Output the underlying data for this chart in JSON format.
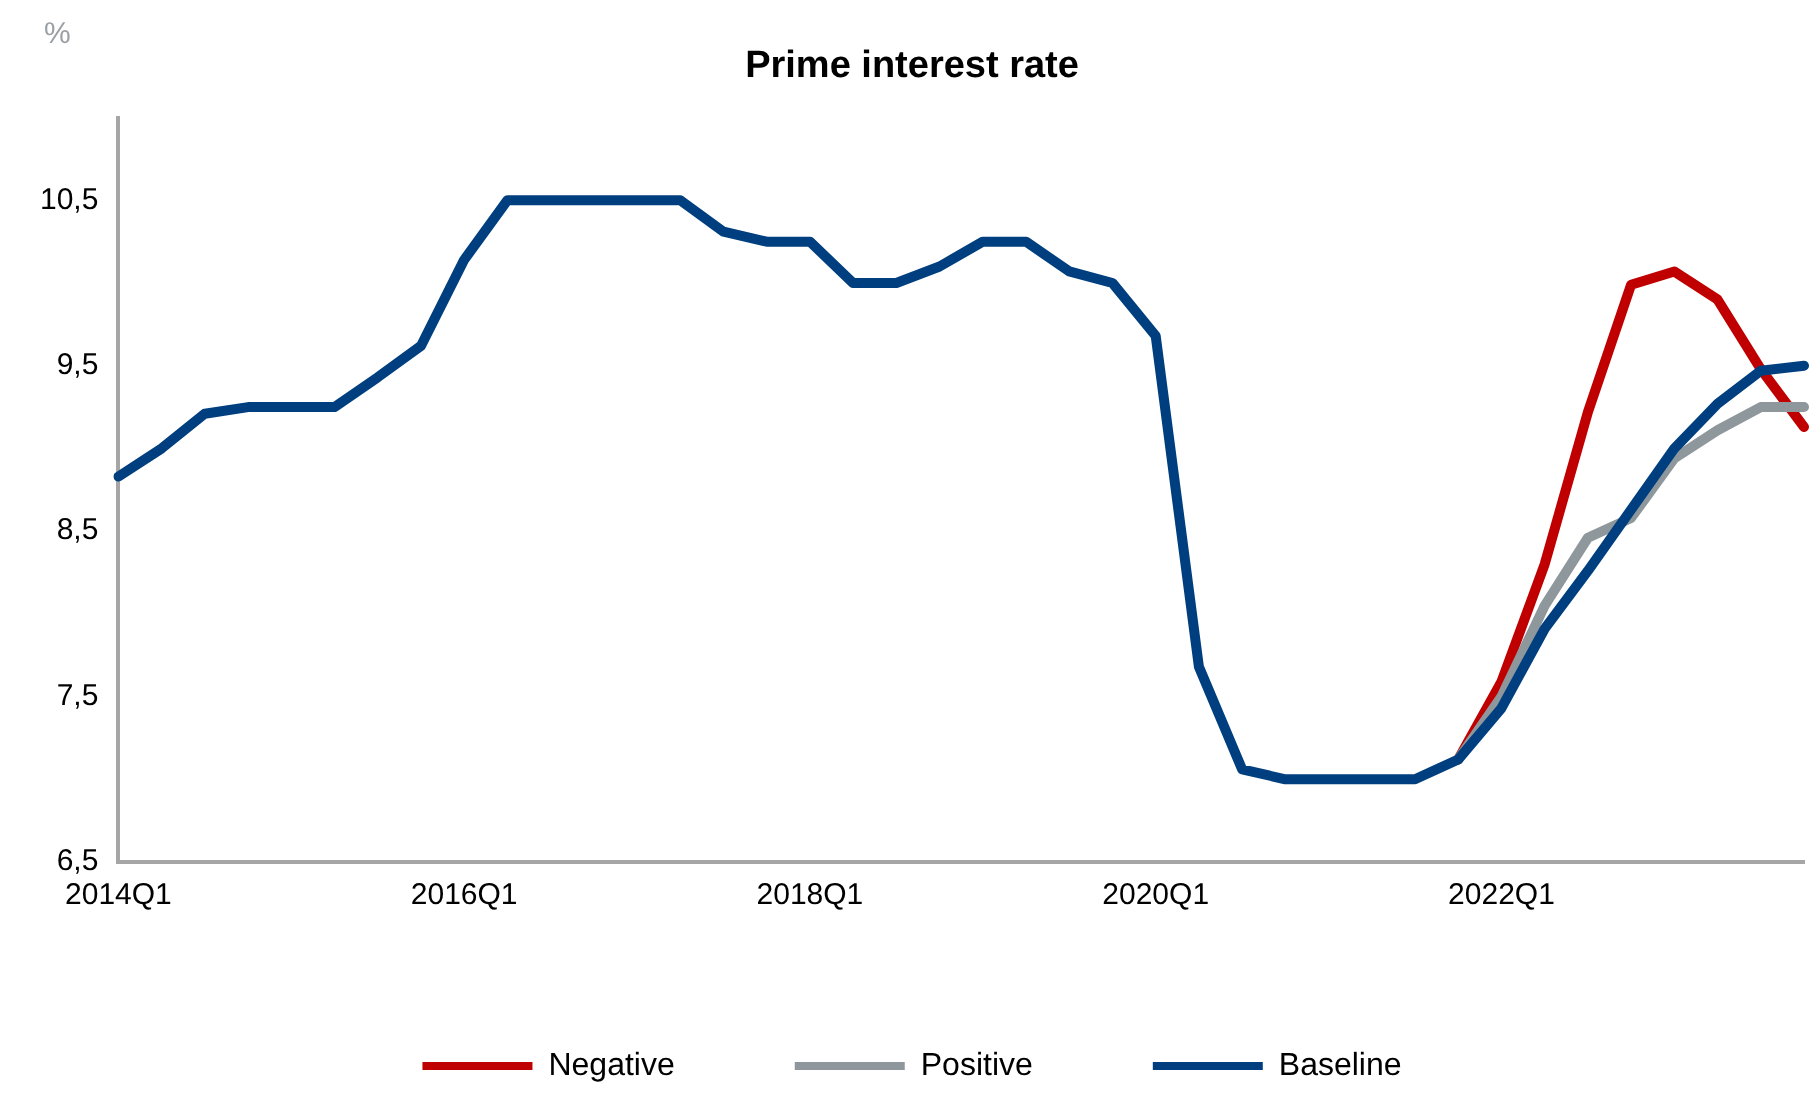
{
  "chart_data": {
    "type": "line",
    "title": "Prime interest rate",
    "ylabel": "%",
    "categories": [
      "2014Q1",
      null,
      null,
      null,
      null,
      null,
      null,
      null,
      "2016Q1",
      null,
      null,
      null,
      null,
      null,
      null,
      null,
      "2018Q1",
      null,
      null,
      null,
      null,
      null,
      null,
      null,
      "2020Q1",
      null,
      null,
      null,
      null,
      null,
      null,
      null,
      "2022Q1",
      null,
      null,
      null,
      null,
      null,
      null,
      null
    ],
    "series": [
      {
        "name": "Negative",
        "color": "#c00000",
        "values": [
          null,
          null,
          null,
          null,
          null,
          null,
          null,
          null,
          null,
          null,
          null,
          null,
          null,
          null,
          null,
          null,
          null,
          null,
          null,
          null,
          null,
          null,
          null,
          null,
          null,
          null,
          null,
          null,
          null,
          null,
          null,
          7.12,
          7.59,
          8.3,
          9.22,
          9.99,
          10.07,
          9.9,
          9.48,
          9.13
        ]
      },
      {
        "name": "Positive",
        "color": "#8e979c",
        "values": [
          null,
          null,
          null,
          null,
          null,
          null,
          null,
          null,
          null,
          null,
          null,
          null,
          null,
          null,
          null,
          null,
          null,
          null,
          null,
          null,
          null,
          null,
          null,
          null,
          null,
          null,
          null,
          null,
          null,
          null,
          null,
          7.12,
          7.5,
          8.05,
          8.46,
          8.58,
          8.94,
          9.11,
          9.25,
          9.25
        ]
      },
      {
        "name": "Baseline",
        "color": "#003f7f",
        "values": [
          8.83,
          9.0,
          9.21,
          9.25,
          9.25,
          9.25,
          9.43,
          9.62,
          10.14,
          10.5,
          10.5,
          10.5,
          10.5,
          10.5,
          10.31,
          10.25,
          10.25,
          10.0,
          10.0,
          10.1,
          10.25,
          10.25,
          10.07,
          10.0,
          9.68,
          7.68,
          7.06,
          7.0,
          7.0,
          7.0,
          7.0,
          7.12,
          7.43,
          7.91,
          8.26,
          8.63,
          9.0,
          9.27,
          9.47,
          9.5
        ]
      }
    ],
    "ylim": [
      6.5,
      11
    ],
    "yticks": [
      {
        "value": 6.5,
        "label": "6,5"
      },
      {
        "value": 7.5,
        "label": "7,5"
      },
      {
        "value": 8.5,
        "label": "8,5"
      },
      {
        "value": 9.5,
        "label": "9,5"
      },
      {
        "value": 10.5,
        "label": "10,5"
      }
    ],
    "grid": false,
    "legend": "bottom",
    "marker": "none",
    "line_style": "solid"
  }
}
